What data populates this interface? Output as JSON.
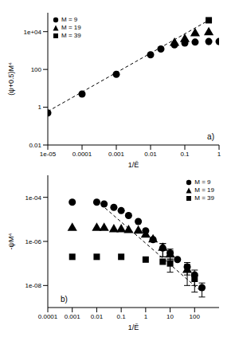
{
  "chart_data": [
    {
      "type": "scatter",
      "xlabel": "1/Ẽ",
      "ylabel": "(ψ+0.5)M⁴",
      "annotation": "a)",
      "log": true,
      "grid": false,
      "legend": "upper left",
      "xlim": [
        1e-05,
        1
      ],
      "ylim": [
        0.01,
        100000
      ],
      "xticks": [
        {
          "value": 1e-05,
          "label": "1e-05"
        },
        0.0001,
        0.001,
        0.01,
        0.1,
        1
      ],
      "yticks": [
        0.01,
        1,
        100,
        {
          "value": 10000,
          "label": "1e+04"
        }
      ],
      "series": [
        {
          "name": "M = 9",
          "color": "#000000",
          "marker": "circle",
          "x": [
            1e-05,
            0.0001,
            0.001,
            0.01,
            0.02,
            0.05,
            0.1,
            0.2,
            0.5,
            1
          ],
          "values": [
            0.5,
            5,
            55,
            600,
            1200,
            2000,
            2500,
            2800,
            3000,
            3000
          ]
        },
        {
          "name": "M = 19",
          "color": "#000000",
          "marker": "triangle",
          "x": [
            0.05,
            0.1,
            0.2,
            0.5
          ],
          "values": [
            2500,
            4000,
            8000,
            9000
          ]
        },
        {
          "name": "M = 39",
          "color": "#000000",
          "marker": "square",
          "x": [
            0.5
          ],
          "values": [
            40000
          ]
        },
        {
          "color": "#000000",
          "line_style": "dashed",
          "x": [
            1e-05,
            0.5
          ],
          "values": [
            0.6,
            40000
          ]
        }
      ]
    },
    {
      "type": "scatter",
      "xlabel": "1/Ẽ",
      "ylabel": "-ψM⁴",
      "annotation": "b)",
      "log": true,
      "grid": false,
      "legend": "upper right",
      "xlim": [
        0.0001,
        1000
      ],
      "ylim": [
        1e-09,
        0.001
      ],
      "xticks": [
        0.0001,
        0.001,
        0.01,
        0.1,
        1,
        10,
        100
      ],
      "yticks": [
        {
          "value": 1e-08,
          "label": "1e-08"
        },
        {
          "value": 1e-06,
          "label": "1e-06"
        },
        {
          "value": 0.0001,
          "label": "1e-04"
        }
      ],
      "series": [
        {
          "name": "M = 9",
          "color": "#000000",
          "marker": "circle",
          "x": [
            0.001,
            0.01,
            0.02,
            0.05,
            0.1,
            0.2,
            0.5,
            1,
            2,
            5,
            10,
            20,
            50,
            100,
            200
          ],
          "values": [
            6e-05,
            6e-05,
            5e-05,
            3.5e-05,
            2.5e-05,
            1.5e-05,
            8e-06,
            3e-06,
            1.2e-06,
            5e-07,
            3e-07,
            1.5e-07,
            7e-08,
            3e-08,
            8e-09
          ],
          "errors": [
            null,
            null,
            null,
            null,
            null,
            null,
            null,
            null,
            null,
            3e-07,
            1.5e-07,
            null,
            4e-08,
            2e-08,
            5e-09
          ]
        },
        {
          "name": "M = 19",
          "color": "#000000",
          "marker": "triangle",
          "x": [
            0.001,
            0.01,
            0.02,
            0.05,
            0.1,
            0.2,
            0.5,
            1,
            2,
            5,
            10,
            50
          ],
          "values": [
            4e-06,
            4e-06,
            4e-06,
            3.5e-06,
            3.5e-06,
            3.2e-06,
            3e-06,
            2e-06,
            1.2e-06,
            5e-07,
            2.5e-07,
            5e-08
          ],
          "errors": [
            null,
            null,
            null,
            null,
            null,
            null,
            null,
            null,
            null,
            3e-07,
            1.2e-07,
            4e-08
          ]
        },
        {
          "name": "M = 39",
          "color": "#000000",
          "marker": "square",
          "x": [
            0.001,
            0.01,
            0.1,
            1,
            5,
            10,
            100
          ],
          "values": [
            2e-07,
            2e-07,
            2e-07,
            1.5e-07,
            1.2e-07,
            1e-07,
            2e-08
          ],
          "errors": [
            null,
            null,
            null,
            null,
            null,
            6e-08,
            1.5e-08
          ]
        },
        {
          "color": "#000000",
          "line_style": "dashed",
          "x": [
            0.01,
            200
          ],
          "values": [
            7e-05,
            5e-09
          ]
        }
      ]
    }
  ]
}
